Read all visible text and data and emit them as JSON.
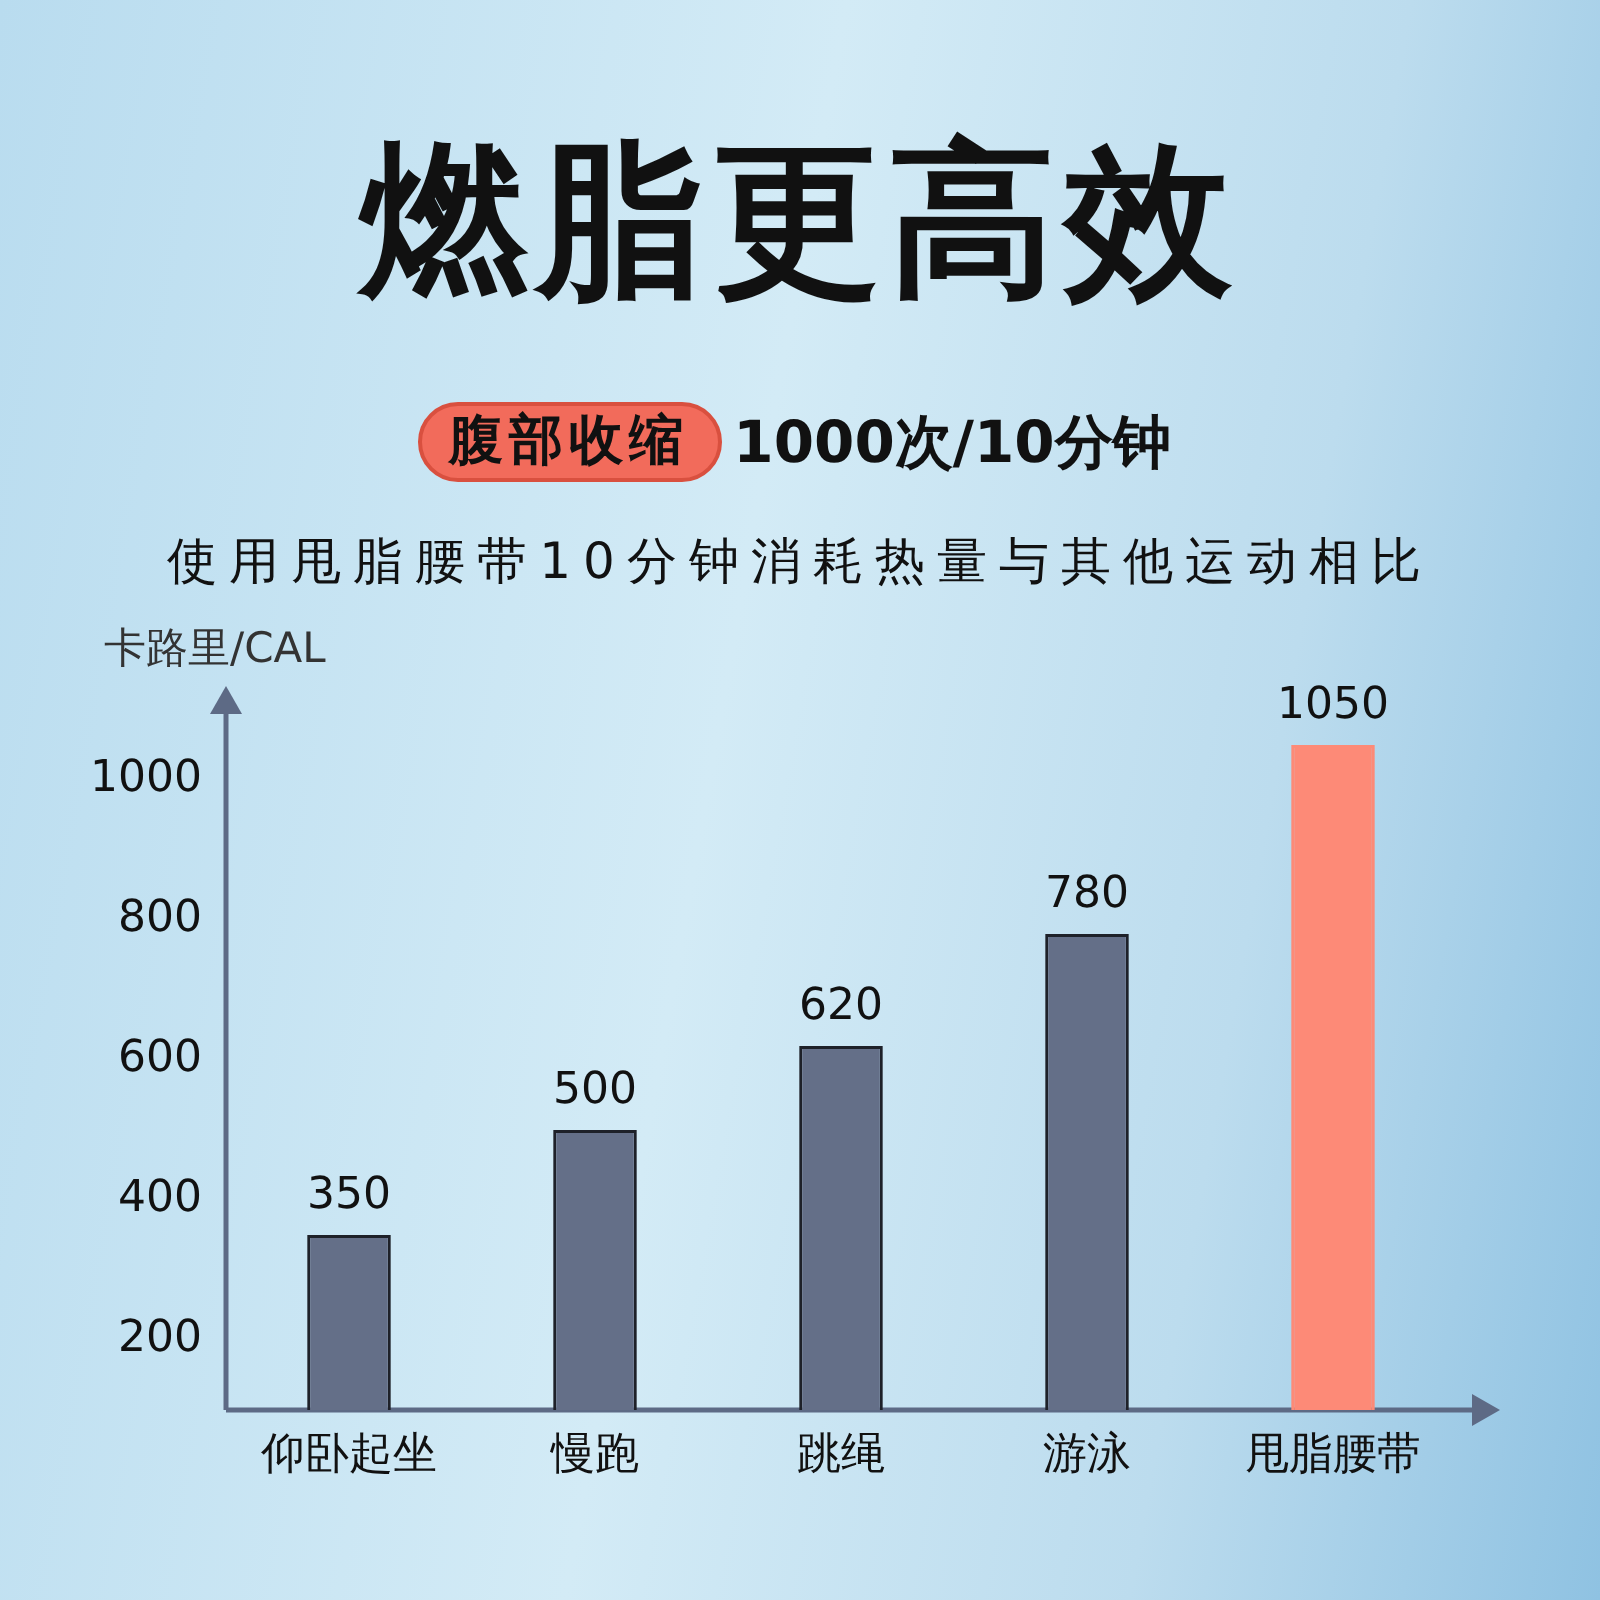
{
  "chart_data": {
    "type": "bar",
    "title": "燃脂更高效",
    "subtitle": "使用甩脂腰带10分钟消耗热量与其他运动相比",
    "ylabel": "卡路里/CAL",
    "annotations": [
      "腹部收缩",
      "1000次/10分钟"
    ],
    "categories": [
      "仰卧起坐",
      "慢跑",
      "跳绳",
      "游泳",
      "甩脂腰带"
    ],
    "values": [
      350,
      500,
      620,
      780,
      1050
    ],
    "colors": [
      "#646f88",
      "#646f88",
      "#646f88",
      "#646f88",
      "#fd8a77"
    ],
    "ylim": [
      100,
      1100
    ],
    "yticks": [
      200,
      400,
      600,
      800,
      1000
    ],
    "data_labels": true
  }
}
